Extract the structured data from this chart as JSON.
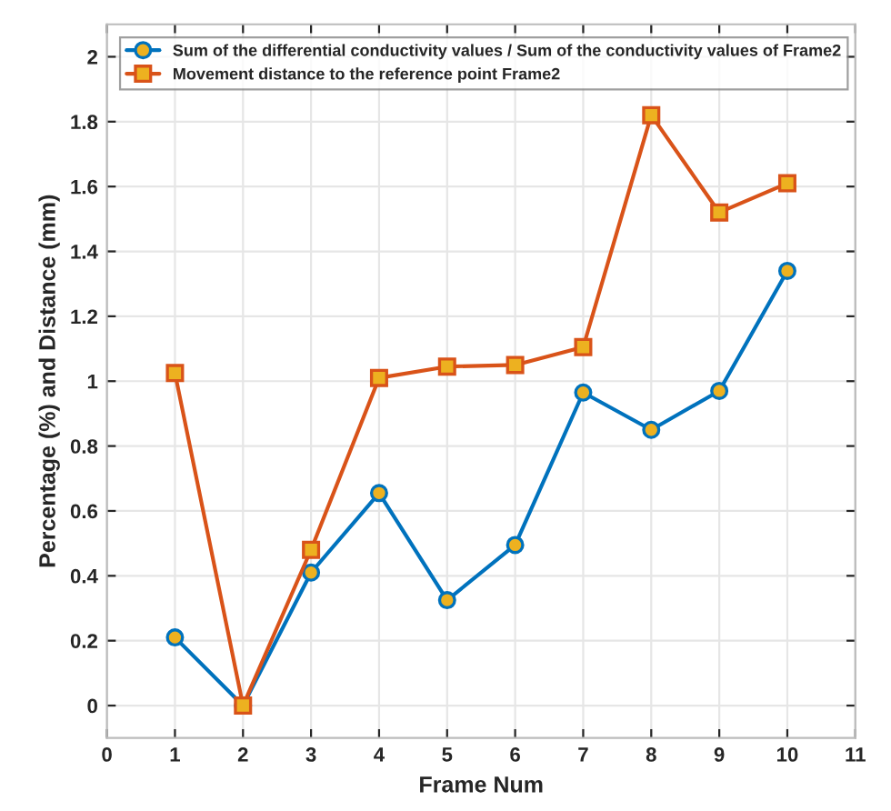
{
  "chart_data": {
    "type": "line",
    "xlabel": "Frame Num",
    "ylabel": "Percentage (%) and Distance (mm)",
    "x": [
      1,
      2,
      3,
      4,
      5,
      6,
      7,
      8,
      9,
      10
    ],
    "series": [
      {
        "name": "Sum of the differential conductivity values / Sum of the conductivity values of Frame2",
        "color": "#0072bd",
        "marker": "circle",
        "values": [
          0.21,
          0.0,
          0.41,
          0.655,
          0.325,
          0.495,
          0.965,
          0.85,
          0.97,
          1.34
        ]
      },
      {
        "name": "Movement distance to the reference point Frame2",
        "color": "#d95319",
        "marker": "square",
        "values": [
          1.025,
          0.0,
          0.48,
          1.01,
          1.045,
          1.05,
          1.105,
          1.82,
          1.52,
          1.61
        ]
      }
    ],
    "xlim": [
      0,
      11
    ],
    "xticks": [
      0,
      1,
      2,
      3,
      4,
      5,
      6,
      7,
      8,
      9,
      10,
      11
    ],
    "ylim": [
      -0.1,
      2.1
    ],
    "yticks": [
      0,
      0.2,
      0.4,
      0.6,
      0.8,
      1,
      1.2,
      1.4,
      1.6,
      1.8,
      2
    ],
    "grid": true,
    "legend": "top left",
    "line_style": "solid"
  }
}
